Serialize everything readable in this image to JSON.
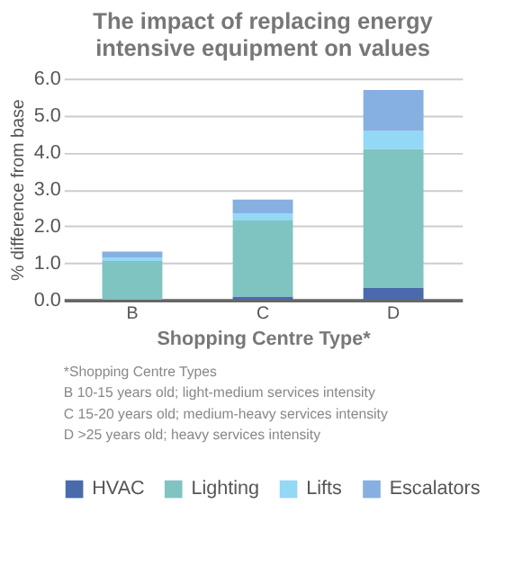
{
  "chart_data": {
    "type": "bar",
    "stacked": true,
    "title": "The impact of replacing energy\nintensive equipment on values",
    "xlabel": "Shopping Centre Type*",
    "ylabel": "% difference from base",
    "categories": [
      "B",
      "C",
      "D"
    ],
    "series": [
      {
        "name": "HVAC",
        "color": "#4a6aad",
        "values": [
          0.0,
          0.09,
          0.32
        ]
      },
      {
        "name": "Lighting",
        "color": "#7fc4c0",
        "values": [
          1.05,
          2.06,
          3.77
        ]
      },
      {
        "name": "Lifts",
        "color": "#93d8f5",
        "values": [
          0.1,
          0.19,
          0.49
        ]
      },
      {
        "name": "Escalators",
        "color": "#86b0e0",
        "values": [
          0.16,
          0.38,
          1.11
        ]
      }
    ],
    "ylim": [
      0,
      6
    ],
    "yticks": [
      {
        "value": 0,
        "label": "0.0"
      },
      {
        "value": 1,
        "label": "1.0"
      },
      {
        "value": 2,
        "label": "2.0"
      },
      {
        "value": 3,
        "label": "3.0"
      },
      {
        "value": 4,
        "label": "4.0"
      },
      {
        "value": 5,
        "label": "5.0"
      },
      {
        "value": 6,
        "label": "6.0"
      }
    ],
    "grid": "y",
    "legend": "bottom",
    "annotations": [
      "*Shopping Centre Types",
      "B  10-15 years old; light-medium services intensity",
      "C  15-20 years old; medium-heavy services intensity",
      "D >25 years old; heavy services intensity"
    ]
  }
}
